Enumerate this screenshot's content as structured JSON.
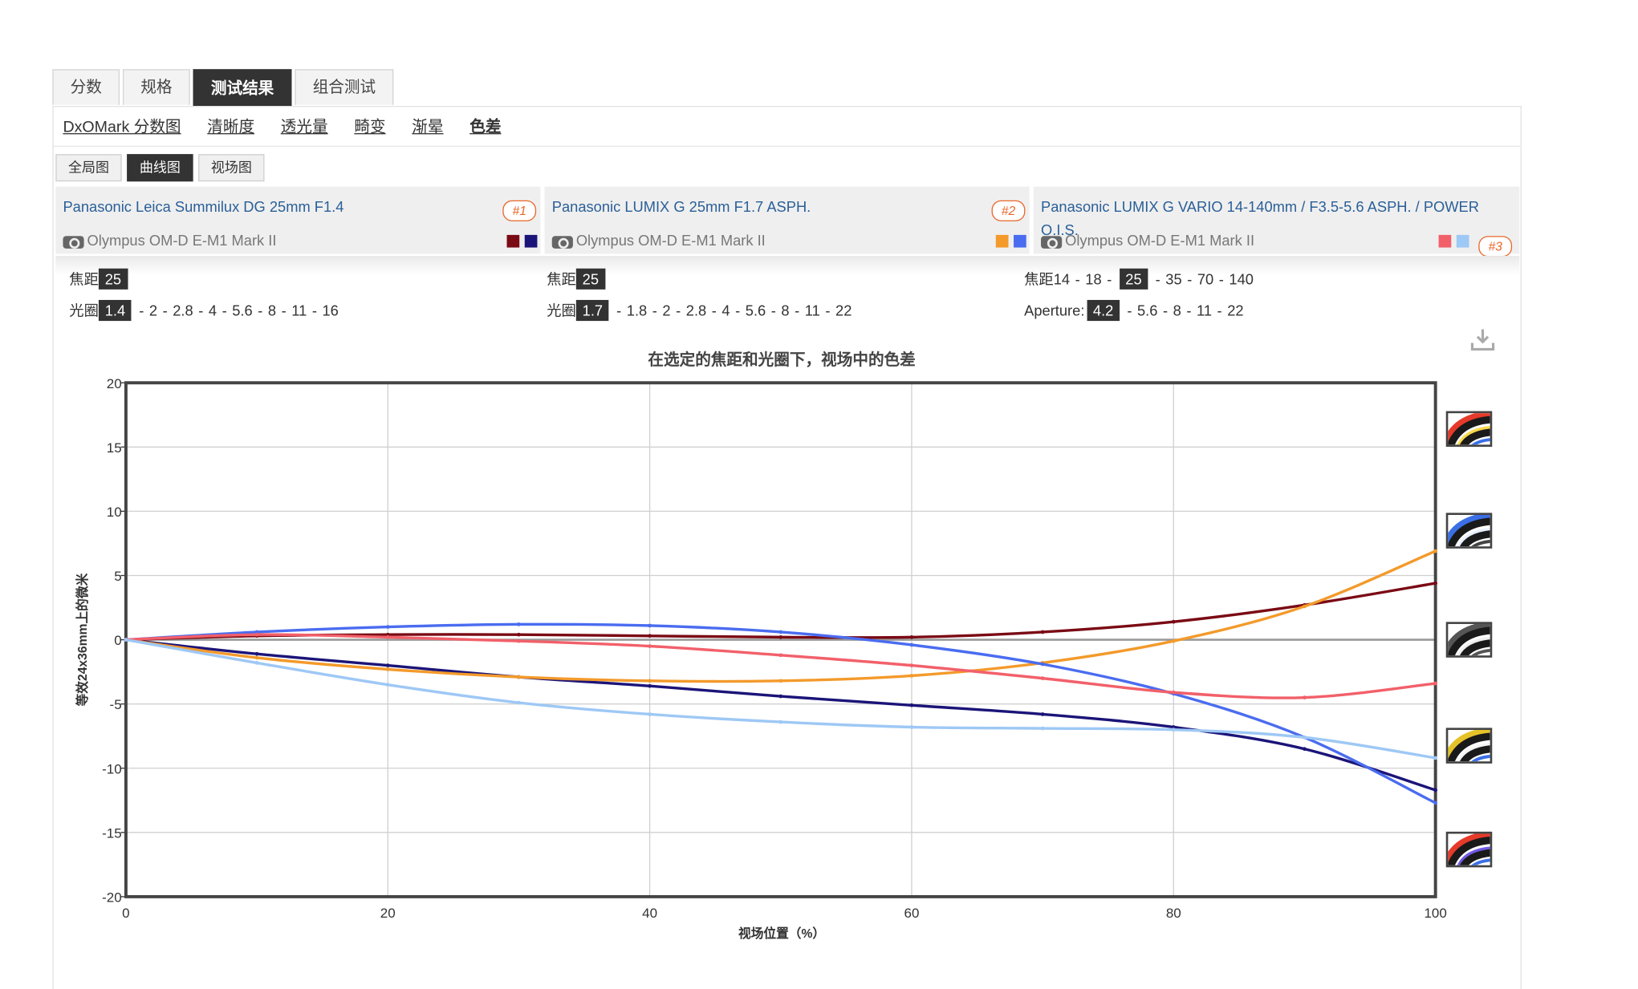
{
  "main_tabs": [
    {
      "label": "分数",
      "active": false
    },
    {
      "label": "规格",
      "active": false
    },
    {
      "label": "测试结果",
      "active": true
    },
    {
      "label": "组合测试",
      "active": false
    }
  ],
  "sub_nav": [
    {
      "label": "DxOMark 分数图",
      "active": false
    },
    {
      "label": "清晰度",
      "active": false
    },
    {
      "label": "透光量",
      "active": false
    },
    {
      "label": "畸变",
      "active": false
    },
    {
      "label": "渐晕",
      "active": false
    },
    {
      "label": "色差",
      "active": true
    }
  ],
  "views": [
    {
      "label": "全局图",
      "active": false
    },
    {
      "label": "曲线图",
      "active": true
    },
    {
      "label": "视场图",
      "active": false
    }
  ],
  "lenses": [
    {
      "name": "Panasonic Leica Summilux DG 25mm F1.4",
      "camera": "Olympus OM-D E-M1 Mark II",
      "badge": "#1",
      "colors": [
        "#7a0a14",
        "#1b1478"
      ],
      "focal_label": "焦距",
      "focal_options": [
        "25"
      ],
      "focal_selected": "25",
      "aperture_label": "光圈",
      "aperture_options": [
        "1.4",
        "2",
        "2.8",
        "4",
        "5.6",
        "8",
        "11",
        "16"
      ],
      "aperture_selected": "1.4"
    },
    {
      "name": "Panasonic LUMIX G 25mm F1.7 ASPH.",
      "camera": "Olympus OM-D E-M1 Mark II",
      "badge": "#2",
      "colors": [
        "#f39a2b",
        "#4a6cf0"
      ],
      "focal_label": "焦距",
      "focal_options": [
        "25"
      ],
      "focal_selected": "25",
      "aperture_label": "光圈",
      "aperture_options": [
        "1.7",
        "1.8",
        "2",
        "2.8",
        "4",
        "5.6",
        "8",
        "11",
        "22"
      ],
      "aperture_selected": "1.7"
    },
    {
      "name": "Panasonic LUMIX G VARIO 14-140mm / F3.5-5.6 ASPH. / POWER O.I.S.",
      "camera": "Olympus OM-D E-M1 Mark II",
      "badge": "#3",
      "colors": [
        "#f2606a",
        "#9ec8f5"
      ],
      "focal_label": "焦距",
      "focal_options": [
        "14",
        "18",
        "25",
        "35",
        "70",
        "140"
      ],
      "focal_selected": "25",
      "aperture_label": "Aperture:",
      "aperture_options": [
        "4.2",
        "5.6",
        "8",
        "11",
        "22"
      ],
      "aperture_selected": "4.2"
    }
  ],
  "chart_data": {
    "type": "line",
    "title": "在选定的焦距和光圈下，视场中的色差",
    "xlabel": "视场位置（%）",
    "ylabel": "等效24x36mm上的微米",
    "xlim": [
      0,
      100
    ],
    "ylim": [
      -20,
      20
    ],
    "x_ticks": [
      0,
      20,
      40,
      60,
      80,
      100
    ],
    "y_ticks": [
      20,
      15,
      10,
      5,
      0,
      -5,
      -10,
      -15,
      -20
    ],
    "grid": true,
    "x": [
      0,
      10,
      20,
      30,
      40,
      50,
      60,
      70,
      80,
      90,
      100
    ],
    "series": [
      {
        "color": "#7a0a14",
        "values": [
          0,
          0.3,
          0.4,
          0.4,
          0.3,
          0.2,
          0.2,
          0.6,
          1.4,
          2.7,
          4.4
        ]
      },
      {
        "color": "#1b1478",
        "values": [
          0,
          -1.1,
          -2.0,
          -2.9,
          -3.6,
          -4.4,
          -5.1,
          -5.8,
          -6.8,
          -8.5,
          -11.7
        ]
      },
      {
        "color": "#f39a2b",
        "values": [
          0,
          -1.4,
          -2.3,
          -2.9,
          -3.2,
          -3.2,
          -2.8,
          -1.8,
          -0.1,
          2.6,
          6.9
        ]
      },
      {
        "color": "#4a6cf0",
        "values": [
          0,
          0.6,
          1.0,
          1.2,
          1.1,
          0.6,
          -0.4,
          -1.9,
          -4.2,
          -7.6,
          -12.7
        ]
      },
      {
        "color": "#f2606a",
        "values": [
          0,
          0.4,
          0.2,
          -0.1,
          -0.5,
          -1.2,
          -2.0,
          -3.0,
          -4.1,
          -4.5,
          -3.4
        ]
      },
      {
        "color": "#9ec8f5",
        "values": [
          0,
          -1.8,
          -3.5,
          -4.9,
          -5.8,
          -6.4,
          -6.8,
          -6.9,
          -7.0,
          -7.6,
          -9.2
        ]
      }
    ]
  }
}
